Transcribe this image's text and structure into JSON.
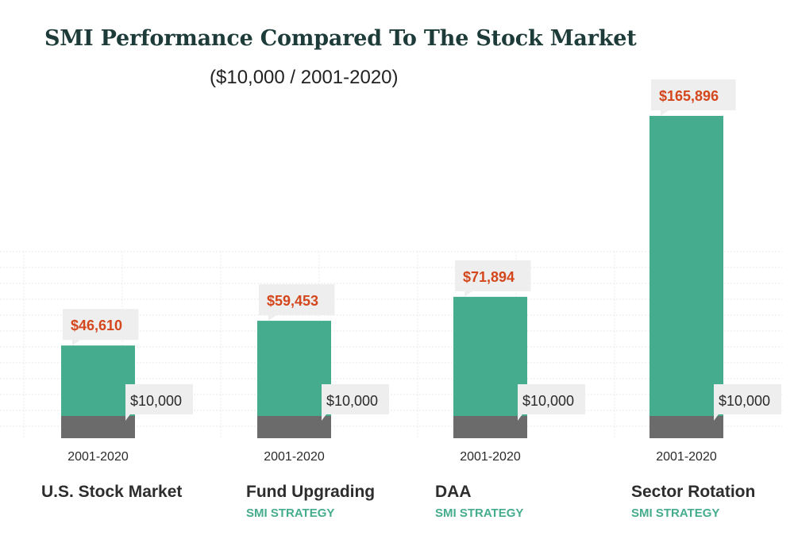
{
  "header": {
    "title": "SMI Performance Compared To The Stock Market",
    "subtitle": "($10,000 / 2001-2020)"
  },
  "colors": {
    "growth": "#45ac8d",
    "base": "#6b6b6b",
    "value_label": "#d4471d",
    "callout_bg": "#eeeeee",
    "strategy_label": "#45ac8d"
  },
  "chart_data": {
    "type": "bar",
    "categories": [
      "U.S. Stock Market",
      "Fund Upgrading",
      "DAA",
      "Sector Rotation"
    ],
    "category_sublabels": [
      "",
      "SMI STRATEGY",
      "SMI STRATEGY",
      "SMI STRATEGY"
    ],
    "period_labels": [
      "2001-2020",
      "2001-2020",
      "2001-2020",
      "2001-2020"
    ],
    "values": [
      46610,
      59453,
      71894,
      165896
    ],
    "value_labels": [
      "$46,610",
      "$59,453",
      "$71,894",
      "$165,896"
    ],
    "start_value": 10000,
    "start_labels": [
      "$10,000",
      "$10,000",
      "$10,000",
      "$10,000"
    ],
    "title": "SMI Performance Compared To The Stock Market",
    "subtitle": "($10,000 / 2001-2020)",
    "xlabel": "",
    "ylabel": "",
    "grid": true
  }
}
